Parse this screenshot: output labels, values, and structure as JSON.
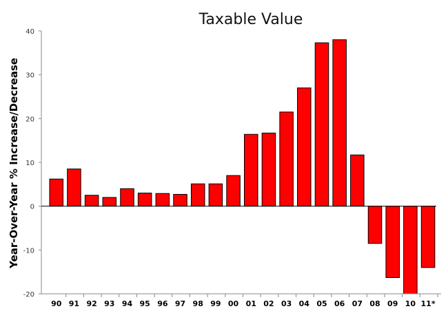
{
  "chart_data": {
    "type": "bar",
    "title": "Taxable Value",
    "xlabel": "",
    "ylabel": "Year-Over-Year % Increase/Decrease",
    "categories": [
      "90",
      "91",
      "92",
      "93",
      "94",
      "95",
      "96",
      "97",
      "98",
      "99",
      "00",
      "01",
      "02",
      "03",
      "04",
      "05",
      "06",
      "07",
      "08",
      "09",
      "10",
      "11*"
    ],
    "values": [
      6.2,
      8.5,
      2.5,
      2.0,
      4.0,
      3.0,
      2.9,
      2.7,
      5.1,
      5.1,
      7.0,
      16.4,
      16.7,
      21.5,
      27.0,
      37.3,
      38.0,
      11.7,
      -8.5,
      -16.3,
      -20.0,
      -14.0
    ],
    "ylim": [
      -20,
      40
    ],
    "yticks": [
      -20,
      -10,
      0,
      10,
      20,
      30,
      40
    ],
    "grid": false,
    "legend": "none",
    "bar_color": "#ff0000",
    "bar_stroke": "#000000"
  }
}
